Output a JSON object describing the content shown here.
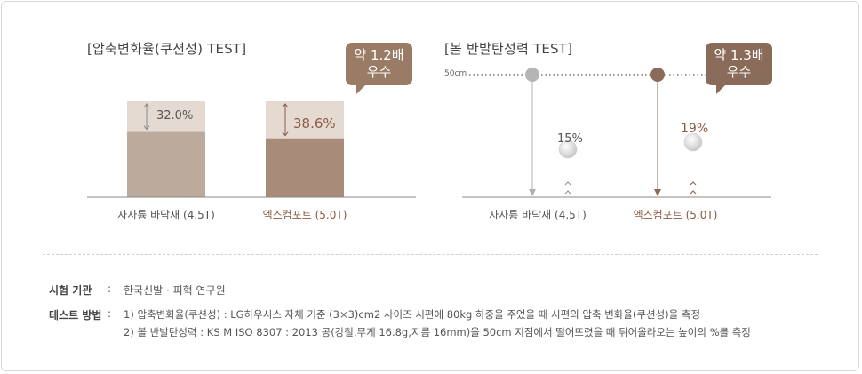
{
  "colors": {
    "compression_badge": "#9a7b66",
    "rebound_badge": "#8a6a58",
    "bar_light_top": "#e4dad2",
    "bar_light_body": "#bcaa9c",
    "bar_dark_top": "#e4dad2",
    "bar_dark_body": "#a88b79",
    "highlight_text": "#8a5a43",
    "axis": "#888888",
    "ball_line_gray": "#b0b0b0",
    "ball_line_brown": "#8a6a58"
  },
  "compression": {
    "title": "[압축변화율(쿠션성) TEST]",
    "badge_line1": "약 1.2배",
    "badge_line2": "우수"
  },
  "rebound": {
    "title": "[볼 반발탄성력 TEST]",
    "badge_line1": "약 1.3배",
    "badge_line2": "우수",
    "height_label": "50cm"
  },
  "chart_data": [
    {
      "type": "bar",
      "title": "[압축변화율(쿠션성) TEST]",
      "categories": [
        "자사륨 바닥재 (4.5T)",
        "엑스컴포트 (5.0T)"
      ],
      "values": [
        32.0,
        38.6
      ],
      "value_labels": [
        "32.0%",
        "38.6%"
      ],
      "unit": "%",
      "highlight_index": 1
    },
    {
      "type": "scatter",
      "title": "[볼 반발탄성력 TEST]",
      "categories": [
        "자사륨 바닥재 (4.5T)",
        "엑스컴포트 (5.0T)"
      ],
      "drop_height_label": "50cm",
      "values": [
        15,
        19
      ],
      "value_labels": [
        "15%",
        "19%"
      ],
      "unit": "%",
      "highlight_index": 1
    }
  ],
  "info": {
    "agency_key": "시험 기관",
    "agency_colon": ":",
    "agency_value": "한국신발 · 피혁 연구원",
    "method_key": "테스트 방법",
    "method_colon": ":",
    "method_line1": "1) 압축변화율(쿠션성) : LG하우시스 자체 기준 (3×3)cm2 사이즈 시편에 80kg 하중을 주었을 때 시편의 압축 변화율(쿠션성)을 측정",
    "method_line2": "2) 볼 반발탄성력 : KS M ISO 8307 : 2013 공(강철,무게 16.8g,지름 16mm)을 50cm 지점에서 떨어뜨렸을 때 튀어올라오는 높이의 %를 측정"
  }
}
